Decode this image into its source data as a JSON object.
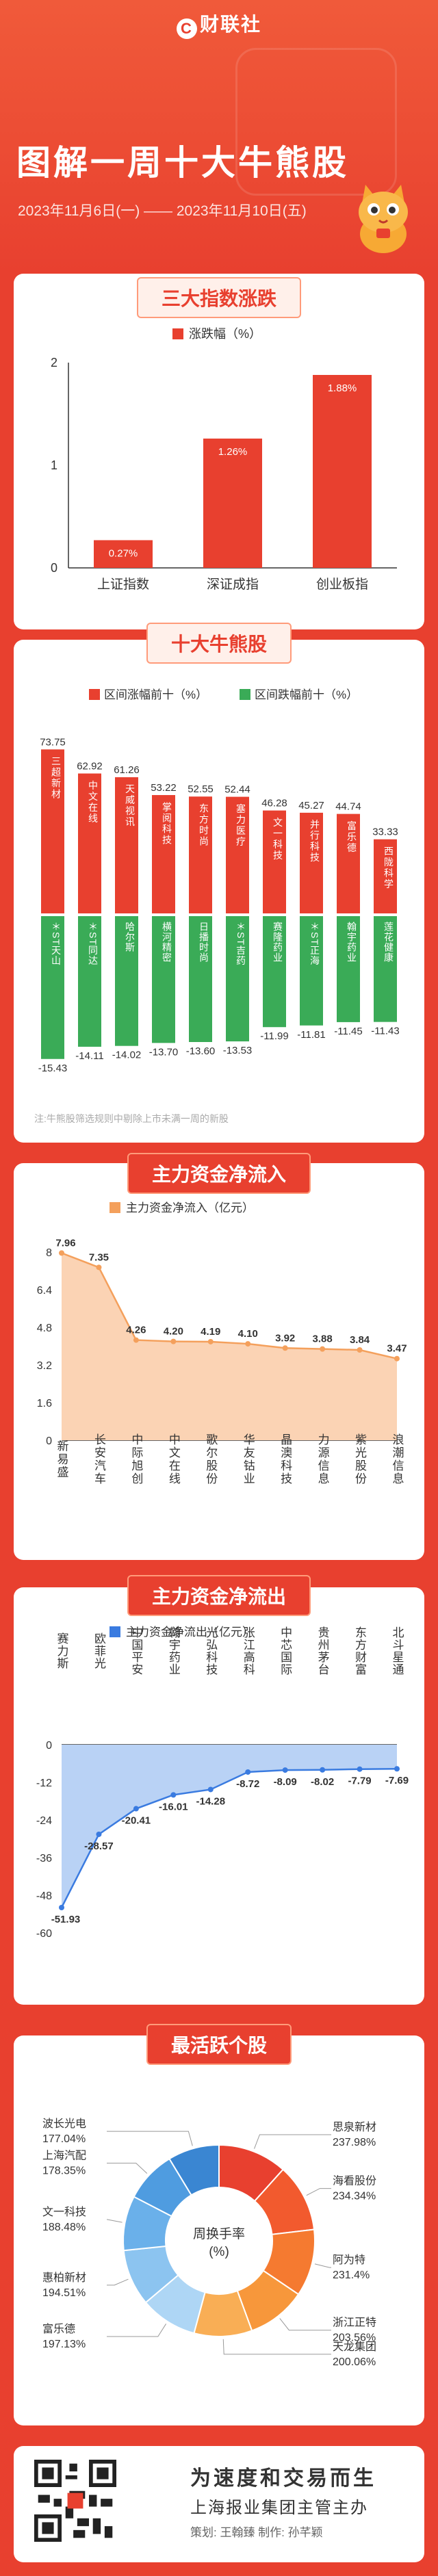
{
  "header": {
    "brand": "财联社",
    "brand_logo": "C",
    "title": "图解一周十大牛熊股",
    "date_range": "2023年11月6日(一) —— 2023年11月10日(五)"
  },
  "colors": {
    "red": "#e8402f",
    "green": "#3aab57",
    "orange": "#f4a05c",
    "blue": "#3a7be0"
  },
  "sections": {
    "index_title": "三大指数涨跌",
    "bullbear_title": "十大牛熊股",
    "inflow_title": "主力资金净流入",
    "outflow_title": "主力资金净流出",
    "active_title": "最活跃个股"
  },
  "bullbear_note": "注:牛熊股筛选规则中剔除上市未满一周的新股",
  "footer": {
    "slogan": "为速度和交易而生",
    "publisher": "上海报业集团主管主办",
    "credits": "策划: 王翰臻    制作: 孙芊颖"
  },
  "chart_data": [
    {
      "type": "bar",
      "title": "三大指数涨跌",
      "categories": [
        "上证指数",
        "深证成指",
        "创业板指"
      ],
      "series": [
        {
          "name": "涨跌幅（%）",
          "values": [
            0.27,
            1.26,
            1.88
          ]
        }
      ],
      "data_labels": [
        "0.27%",
        "1.26%",
        "1.88%"
      ],
      "ylim": [
        0,
        2
      ],
      "yticks": [
        0,
        1,
        2
      ],
      "legend": "top"
    },
    {
      "type": "bar",
      "title": "十大牛熊股",
      "series": [
        {
          "name": "区间涨幅前十（%）",
          "categories": [
            "三超新材",
            "中文在线",
            "天威视讯",
            "掌阅科技",
            "东方时尚",
            "塞力医疗",
            "文一科技",
            "并行科技",
            "富乐德",
            "西陇科学"
          ],
          "values": [
            73.75,
            62.92,
            61.26,
            53.22,
            52.55,
            52.44,
            46.28,
            45.27,
            44.74,
            33.33
          ]
        },
        {
          "name": "区间跌幅前十（%）",
          "categories": [
            "＊ST天山",
            "＊ST同达",
            "哈尔斯",
            "横河精密",
            "日播时尚",
            "＊ST吉药",
            "赛隆药业",
            "＊ST正海",
            "翰宇药业",
            "莲花健康"
          ],
          "values": [
            -15.43,
            -14.11,
            -14.02,
            -13.7,
            -13.6,
            -13.53,
            -11.99,
            -11.81,
            -11.45,
            -11.43
          ]
        }
      ],
      "legend": "top"
    },
    {
      "type": "area",
      "title": "主力资金净流入",
      "categories": [
        "新易盛",
        "长安汽车",
        "中际旭创",
        "中文在线",
        "歌尔股份",
        "华友钴业",
        "晶澳科技",
        "力源信息",
        "紫光股份",
        "浪潮信息"
      ],
      "series": [
        {
          "name": "主力资金净流入（亿元）",
          "values": [
            7.96,
            7.35,
            4.26,
            4.2,
            4.19,
            4.1,
            3.92,
            3.88,
            3.84,
            3.47
          ]
        }
      ],
      "ylim": [
        0,
        8
      ],
      "yticks": [
        0,
        1.6,
        3.2,
        4.8,
        6.4,
        8
      ],
      "legend": "top"
    },
    {
      "type": "area",
      "title": "主力资金净流出",
      "categories": [
        "赛力斯",
        "欧菲光",
        "中国平安",
        "翰宇药业",
        "光弘科技",
        "张江高科",
        "中芯国际",
        "贵州茅台",
        "东方财富",
        "北斗星通"
      ],
      "series": [
        {
          "name": "主力资金净流出（亿元）",
          "values": [
            -51.93,
            -28.57,
            -20.41,
            -16.01,
            -14.28,
            -8.72,
            -8.09,
            -8.02,
            -7.79,
            -7.69
          ]
        }
      ],
      "ylim": [
        -60,
        0
      ],
      "yticks": [
        0,
        -12,
        -24,
        -36,
        -48,
        -60
      ],
      "legend": "top"
    },
    {
      "type": "pie",
      "title": "最活跃个股",
      "center_label": "周换手率\n(%)",
      "labels": [
        "思泉新材",
        "海看股份",
        "阿为特",
        "浙江正特",
        "天龙集团",
        "富乐德",
        "惠柏新材",
        "文一科技",
        "上海汽配",
        "波长光电"
      ],
      "values": [
        237.98,
        234.34,
        231.4,
        203.56,
        200.06,
        197.13,
        194.51,
        188.48,
        178.35,
        177.04
      ],
      "value_labels": [
        "237.98%",
        "234.34%",
        "231.4%",
        "203.56%",
        "200.06%",
        "197.13%",
        "194.51%",
        "188.48%",
        "178.35%",
        "177.04%"
      ]
    }
  ]
}
